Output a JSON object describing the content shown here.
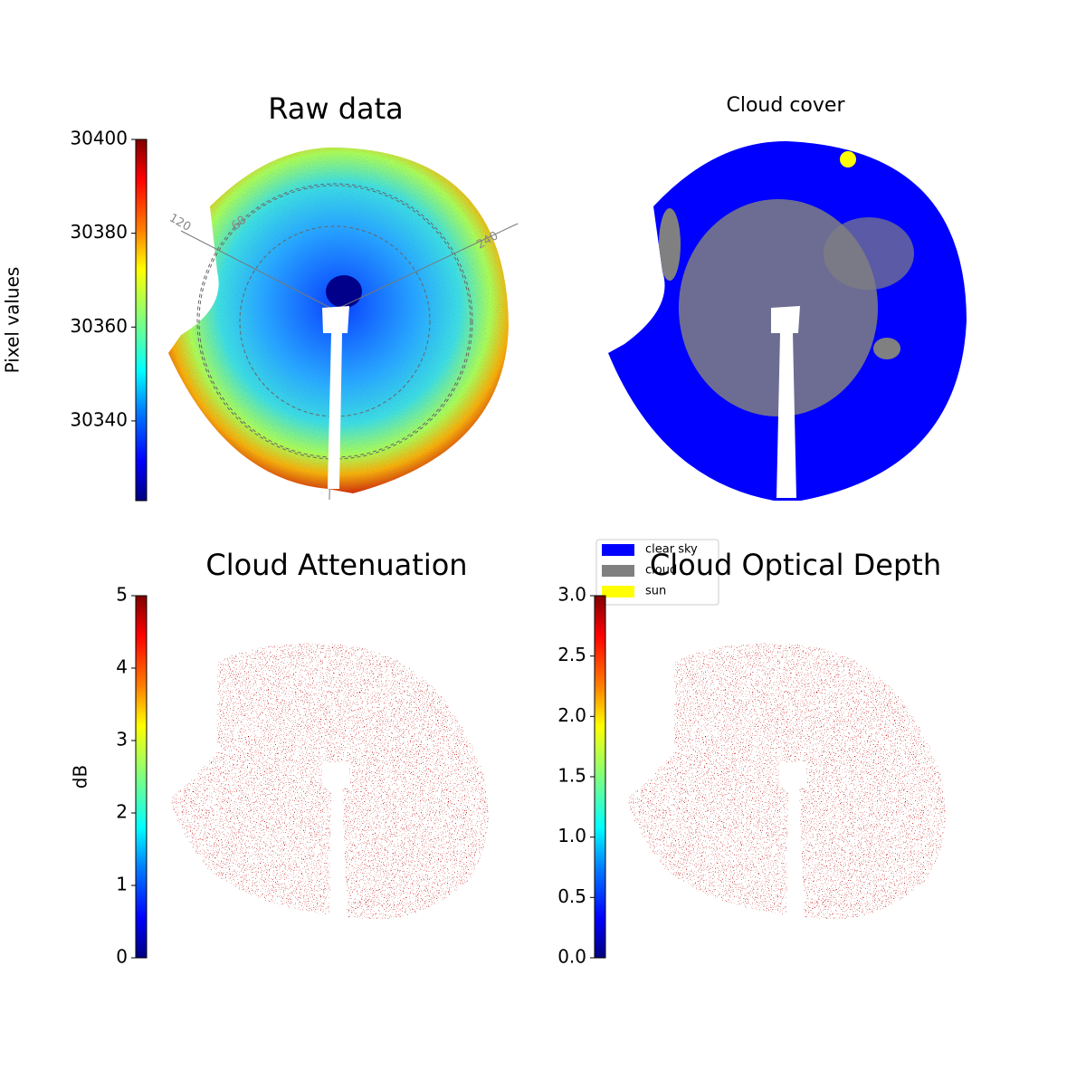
{
  "chart_data": [
    {
      "type": "image",
      "title": "Raw data",
      "colorbar_label": "Pixel values",
      "ylim": [
        30323,
        30400
      ],
      "yticks": [
        30340,
        30360,
        30380,
        30400
      ],
      "annotations": [
        "120",
        "60",
        "240"
      ]
    },
    {
      "type": "image",
      "title": "Cloud cover",
      "legend": [
        {
          "name": "clear sky",
          "color": "#0000ff"
        },
        {
          "name": "cloud",
          "color": "#808080"
        },
        {
          "name": "sun",
          "color": "#ffff00"
        }
      ]
    },
    {
      "type": "image",
      "title": "Cloud Attenuation",
      "colorbar_label": "dB",
      "ylim": [
        0,
        5
      ],
      "yticks": [
        0,
        1,
        2,
        3,
        4,
        5
      ]
    },
    {
      "type": "image",
      "title": "Cloud Optical Depth",
      "ylim": [
        0,
        3
      ],
      "yticks": [
        {
          "value": 0,
          "label": "0.0"
        },
        {
          "value": 0.5,
          "label": "0.5"
        },
        {
          "value": 1,
          "label": "1.0"
        },
        {
          "value": 1.5,
          "label": "1.5"
        },
        {
          "value": 2,
          "label": "2.0"
        },
        {
          "value": 2.5,
          "label": "2.5"
        },
        {
          "value": 3,
          "label": "3.0"
        }
      ]
    }
  ]
}
